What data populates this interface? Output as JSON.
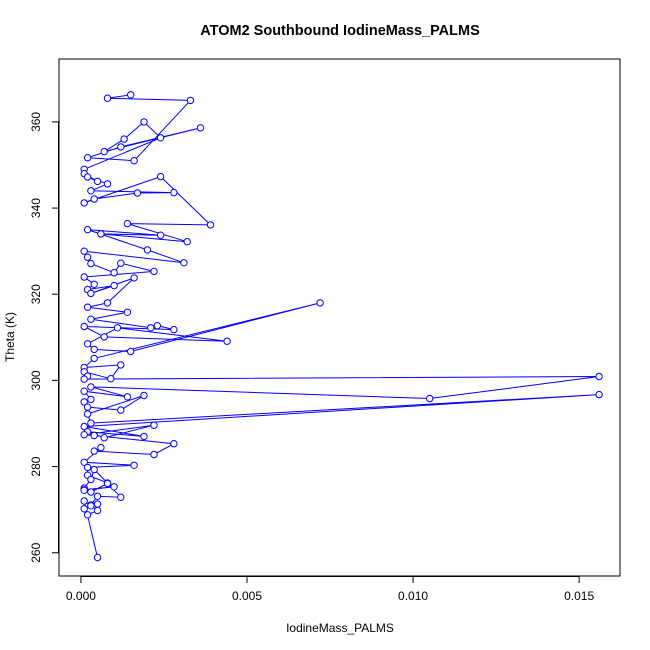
{
  "chart_data": {
    "type": "scatter",
    "title": "ATOM2 Southbound IodineMass_PALMS",
    "xlabel": "IodineMass_PALMS",
    "ylabel": "Theta (K)",
    "xlim": [
      -0.00066,
      0.01623
    ],
    "ylim": [
      254.6,
      374.6
    ],
    "x_ticks": [
      0.0,
      0.005,
      0.01,
      0.015
    ],
    "x_tick_labels": [
      "0.000",
      "0.005",
      "0.010",
      "0.015"
    ],
    "y_ticks": [
      260,
      280,
      300,
      320,
      340,
      360
    ],
    "y_tick_labels": [
      "260",
      "280",
      "300",
      "320",
      "340",
      "360"
    ],
    "grid": false,
    "legend": "none",
    "marker": "open-circle",
    "connected": true,
    "color": "#0000ff",
    "series": [
      {
        "x": [
          0.0015,
          0.0008,
          0.0033,
          0.0016,
          0.0002,
          0.0012,
          0.0036,
          0.0007,
          0.0013,
          0.0019,
          0.0024,
          0.0001,
          0.0001,
          0.0005,
          0.0002,
          0.0008,
          0.0003,
          0.0028,
          0.0017,
          0.0004,
          0.0001,
          0.0024,
          0.0039,
          0.0014,
          0.0032,
          0.0006,
          0.0024,
          0.0002,
          0.002,
          0.0031,
          0.0001,
          0.0002,
          0.0003,
          0.001,
          0.0012,
          0.0022,
          0.0001,
          0.0004,
          0.0002,
          0.001,
          0.0003,
          0.0016,
          0.0008,
          0.0002,
          0.0014,
          0.0003,
          0.0021,
          0.0023,
          0.0028,
          0.0001,
          0.0007,
          0.0044,
          0.0011,
          0.0002,
          0.0004,
          0.0015,
          0.0072,
          0.0004,
          0.0001,
          0.0012,
          0.0009,
          0.0001,
          0.0002,
          0.0001,
          0.0156,
          0.0105,
          0.0003,
          0.0014,
          0.0001,
          0.0003,
          0.0001,
          0.0002,
          0.0012,
          0.0019,
          0.0002,
          0.0003,
          0.0156,
          0.0001,
          0.0019,
          0.0002,
          0.0007,
          0.0022,
          0.0001,
          0.0004,
          0.0028,
          0.0022,
          0.0004,
          0.0006,
          0.0001,
          0.0016,
          0.0002,
          0.0002,
          0.0008,
          0.0004,
          0.0003,
          0.0001,
          0.0001,
          0.001,
          0.0001,
          0.0003,
          0.0008,
          0.0012,
          0.0005,
          0.0003,
          0.0005,
          0.0003,
          0.0001,
          0.0002,
          0.0005,
          0.0001,
          0.0005
        ],
        "y": [
          366.3,
          365.5,
          365.0,
          351.0,
          351.7,
          354.2,
          358.6,
          353.1,
          356.0,
          360.0,
          356.3,
          349.0,
          348.0,
          346.2,
          347.2,
          345.6,
          344.0,
          343.6,
          343.5,
          342.1,
          341.2,
          347.3,
          336.1,
          336.4,
          332.2,
          334.0,
          333.7,
          335.0,
          330.3,
          327.3,
          330.0,
          328.6,
          327.1,
          325.0,
          327.2,
          325.3,
          324.0,
          322.3,
          321.1,
          322.0,
          320.2,
          323.8,
          318.0,
          317.0,
          315.8,
          314.2,
          312.2,
          312.7,
          311.8,
          312.5,
          310.1,
          309.1,
          312.2,
          308.5,
          307.2,
          306.7,
          318.0,
          305.1,
          303.0,
          303.6,
          300.4,
          302.0,
          301.0,
          300.3,
          300.9,
          295.8,
          298.5,
          296.2,
          297.5,
          295.6,
          295.0,
          293.8,
          293.1,
          296.5,
          292.2,
          290.1,
          296.7,
          289.3,
          287.0,
          288.1,
          286.7,
          289.6,
          287.4,
          287.2,
          285.3,
          282.8,
          283.6,
          284.4,
          281.0,
          280.3,
          279.8,
          278.0,
          276.2,
          279.3,
          277.0,
          275.0,
          274.6,
          275.3,
          274.5,
          274.1,
          276.1,
          272.9,
          273.1,
          271.1,
          271.3,
          270.9,
          270.2,
          268.8,
          269.8,
          272.0,
          258.9
        ]
      }
    ]
  }
}
